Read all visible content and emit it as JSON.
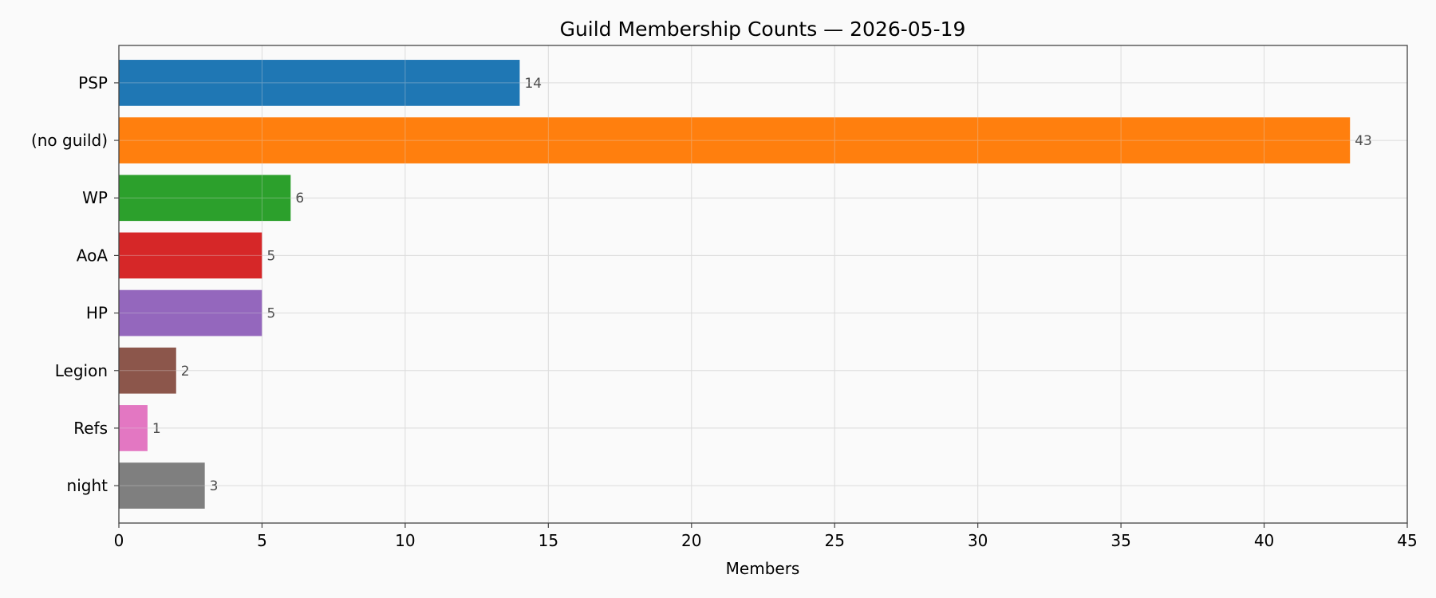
{
  "chart_data": {
    "type": "bar",
    "orientation": "horizontal",
    "title": "Guild Membership Counts — 2026-05-19",
    "xlabel": "Members",
    "ylabel": "",
    "xlim": [
      0,
      45
    ],
    "xticks": [
      0,
      5,
      10,
      15,
      20,
      25,
      30,
      35,
      40,
      45
    ],
    "grid": true,
    "legend": "none",
    "categories": [
      "PSP",
      "(no guild)",
      "WP",
      "AoA",
      "HP",
      "Legion",
      "Refs",
      "night"
    ],
    "values": [
      14,
      43,
      6,
      5,
      5,
      2,
      1,
      3
    ],
    "colors": [
      "#1f77b4",
      "#ff7f0e",
      "#2ca02c",
      "#d62728",
      "#9467bd",
      "#8c564b",
      "#e377c2",
      "#7f7f7f"
    ],
    "data_labels": [
      "14",
      "43",
      "6",
      "5",
      "5",
      "2",
      "1",
      "3"
    ]
  }
}
